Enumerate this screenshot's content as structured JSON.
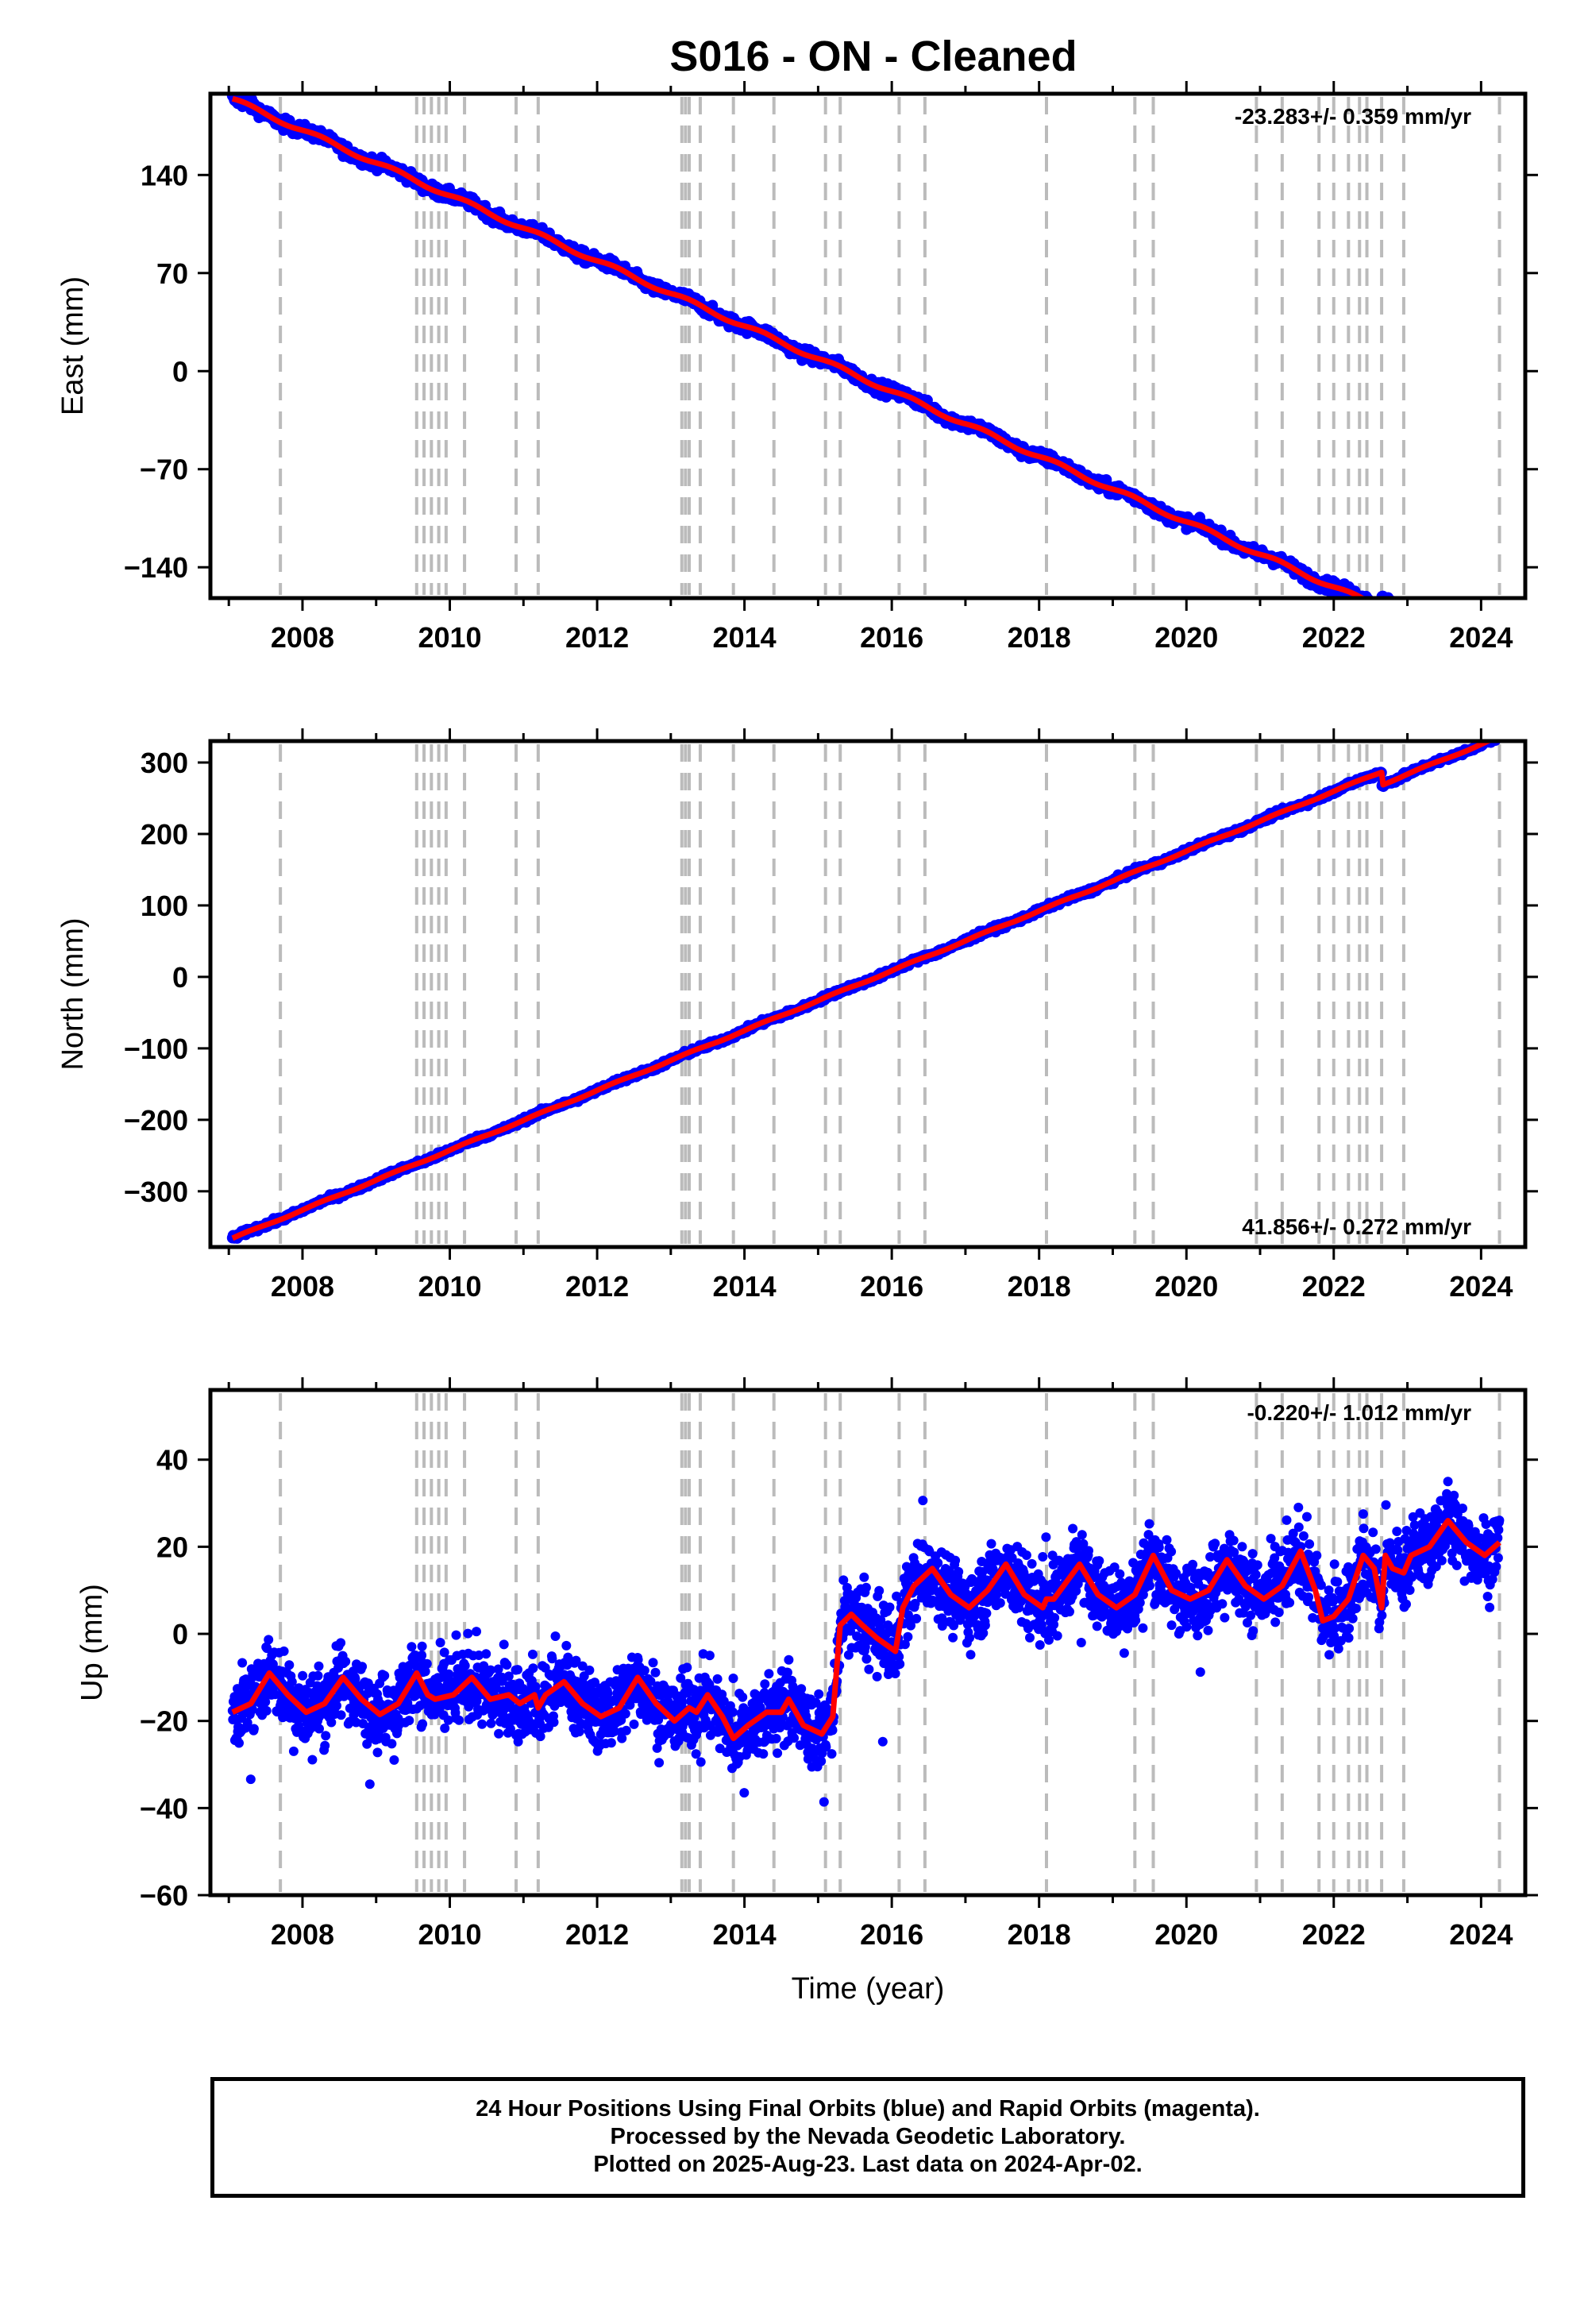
{
  "title": "S016  - ON - Cleaned",
  "caption": {
    "line1": "24 Hour Positions Using Final Orbits (blue) and Rapid Orbits (magenta).",
    "line2": "Processed by the Nevada Geodetic Laboratory.",
    "line3": "Plotted on 2025-Aug-23. Last data on 2024-Apr-02."
  },
  "colors": {
    "data_points": "#0000ff",
    "model_line": "#ff0000",
    "event_lines": "#bbbbbb",
    "frame": "#000000"
  },
  "chart_data": [
    {
      "type": "scatter",
      "name": "east",
      "xlabel": "",
      "ylabel": "East (mm)",
      "xlim": [
        2006.75,
        2024.6
      ],
      "ylim": [
        -162,
        198
      ],
      "xticks": [
        2008,
        2010,
        2012,
        2014,
        2016,
        2018,
        2020,
        2022,
        2024
      ],
      "yticks": [
        -140,
        -70,
        0,
        70,
        140
      ],
      "ytick_labels": [
        "−140",
        "−70",
        "0",
        "70",
        "140"
      ],
      "rate_label": "-23.283+/- 0.359 mm/yr",
      "rate_position": "top-right",
      "data_range": [
        2007.05,
        2024.25
      ],
      "model": {
        "start": 2007.05,
        "intercept": 194,
        "rate": -23.283,
        "offsets": [
          {
            "t": 2022.65,
            "dy": 8
          }
        ],
        "seasonal": {
          "amp": 1.5,
          "phase": 0
        }
      },
      "noise": 3
    },
    {
      "type": "scatter",
      "name": "north",
      "xlabel": "",
      "ylabel": "North (mm)",
      "xlim": [
        2006.75,
        2024.6
      ],
      "ylim": [
        -378,
        330
      ],
      "xticks": [
        2008,
        2010,
        2012,
        2014,
        2016,
        2018,
        2020,
        2022,
        2024
      ],
      "yticks": [
        -300,
        -200,
        -100,
        0,
        100,
        200,
        300
      ],
      "ytick_labels": [
        "−300",
        "−200",
        "−100",
        "0",
        "100",
        "200",
        "300"
      ],
      "rate_label": "41.856+/- 0.272 mm/yr",
      "rate_position": "bottom-right",
      "data_range": [
        2007.05,
        2024.25
      ],
      "model": {
        "start": 2007.05,
        "intercept": -366,
        "rate": 41.856,
        "offsets": [
          {
            "t": 2022.65,
            "dy": -18
          }
        ],
        "seasonal": {
          "amp": 1.0,
          "phase": 0
        }
      },
      "noise": 2.5
    },
    {
      "type": "scatter",
      "name": "up",
      "xlabel": "Time (year)",
      "ylabel": "Up (mm)",
      "xlim": [
        2006.75,
        2024.6
      ],
      "ylim": [
        -60,
        56
      ],
      "xticks": [
        2008,
        2010,
        2012,
        2014,
        2016,
        2018,
        2020,
        2022,
        2024
      ],
      "yticks": [
        -60,
        -40,
        -20,
        0,
        20,
        40
      ],
      "ytick_labels": [
        "−60",
        "−40",
        "−20",
        "0",
        "20",
        "40"
      ],
      "rate_label": "-0.220+/- 1.012 mm/yr",
      "rate_position": "top-right",
      "data_range": [
        2007.05,
        2024.25
      ],
      "model_line": [
        [
          2007.05,
          -18
        ],
        [
          2007.3,
          -16
        ],
        [
          2007.55,
          -9
        ],
        [
          2007.8,
          -14
        ],
        [
          2008.05,
          -18
        ],
        [
          2008.3,
          -16
        ],
        [
          2008.55,
          -10
        ],
        [
          2008.8,
          -15
        ],
        [
          2009.05,
          -18.5
        ],
        [
          2009.3,
          -16
        ],
        [
          2009.55,
          -9
        ],
        [
          2009.7,
          -14
        ],
        [
          2009.8,
          -15
        ],
        [
          2010.05,
          -14
        ],
        [
          2010.3,
          -10
        ],
        [
          2010.55,
          -15
        ],
        [
          2010.8,
          -14
        ],
        [
          2010.95,
          -16
        ],
        [
          2011.15,
          -14
        ],
        [
          2011.2,
          -17
        ],
        [
          2011.3,
          -14
        ],
        [
          2011.55,
          -11
        ],
        [
          2011.8,
          -16
        ],
        [
          2012.05,
          -19
        ],
        [
          2012.3,
          -17
        ],
        [
          2012.55,
          -10
        ],
        [
          2012.8,
          -16
        ],
        [
          2013.05,
          -20
        ],
        [
          2013.25,
          -17
        ],
        [
          2013.35,
          -18
        ],
        [
          2013.5,
          -14
        ],
        [
          2013.7,
          -19
        ],
        [
          2013.85,
          -24
        ],
        [
          2014.05,
          -21
        ],
        [
          2014.3,
          -18
        ],
        [
          2014.5,
          -18
        ],
        [
          2014.6,
          -15
        ],
        [
          2014.8,
          -21
        ],
        [
          2015.05,
          -23
        ],
        [
          2015.2,
          -19
        ],
        [
          2015.3,
          2
        ],
        [
          2015.45,
          4.5
        ],
        [
          2015.6,
          2
        ],
        [
          2015.8,
          -1
        ],
        [
          2016.05,
          -4
        ],
        [
          2016.15,
          6
        ],
        [
          2016.3,
          11
        ],
        [
          2016.55,
          15
        ],
        [
          2016.8,
          9
        ],
        [
          2017.05,
          6
        ],
        [
          2017.3,
          10
        ],
        [
          2017.55,
          16
        ],
        [
          2017.8,
          9
        ],
        [
          2018.05,
          6
        ],
        [
          2018.1,
          8
        ],
        [
          2018.2,
          8
        ],
        [
          2018.55,
          16
        ],
        [
          2018.8,
          9
        ],
        [
          2019.05,
          6
        ],
        [
          2019.3,
          9
        ],
        [
          2019.55,
          18
        ],
        [
          2019.8,
          10
        ],
        [
          2020.05,
          8
        ],
        [
          2020.3,
          10
        ],
        [
          2020.55,
          17
        ],
        [
          2020.8,
          11
        ],
        [
          2021.05,
          8
        ],
        [
          2021.3,
          11
        ],
        [
          2021.55,
          19
        ],
        [
          2021.75,
          10
        ],
        [
          2021.85,
          3
        ],
        [
          2022.0,
          4
        ],
        [
          2022.2,
          8
        ],
        [
          2022.4,
          18
        ],
        [
          2022.55,
          15
        ],
        [
          2022.65,
          6
        ],
        [
          2022.7,
          18
        ],
        [
          2022.8,
          15
        ],
        [
          2022.95,
          14
        ],
        [
          2023.05,
          18
        ],
        [
          2023.3,
          20
        ],
        [
          2023.55,
          26
        ],
        [
          2023.8,
          21
        ],
        [
          2024.05,
          18
        ],
        [
          2024.25,
          21
        ]
      ],
      "noise": 6
    }
  ],
  "event_lines": [
    2007.7,
    2009.55,
    2009.65,
    2009.75,
    2009.85,
    2009.95,
    2010.2,
    2010.9,
    2011.2,
    2013.15,
    2013.2,
    2013.25,
    2013.4,
    2013.85,
    2014.4,
    2015.1,
    2015.3,
    2016.1,
    2016.45,
    2018.1,
    2019.3,
    2019.55,
    2020.95,
    2021.3,
    2021.8,
    2022.0,
    2022.2,
    2022.35,
    2022.45,
    2022.65,
    2022.95,
    2024.25
  ]
}
